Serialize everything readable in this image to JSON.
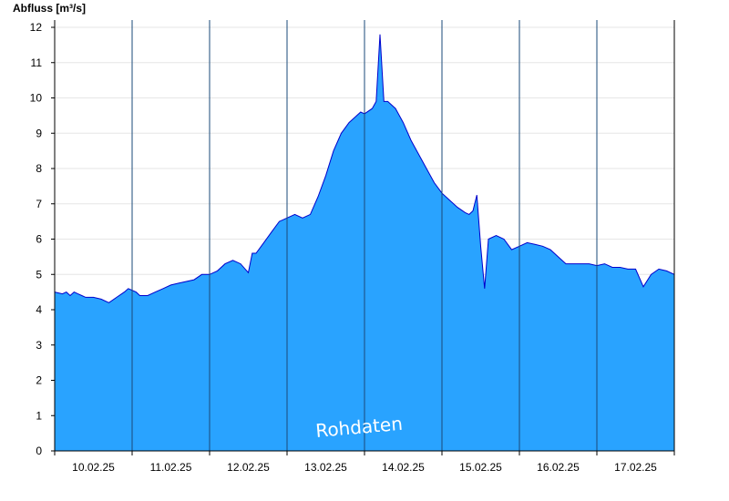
{
  "chart_data": {
    "type": "area",
    "ylabel": "Abfluss [m³/s]",
    "watermark": "Rohdaten",
    "ylim": [
      0,
      12
    ],
    "yticks": [
      0,
      1,
      2,
      3,
      4,
      5,
      6,
      7,
      8,
      9,
      10,
      11,
      12
    ],
    "xlim": [
      0,
      8
    ],
    "day_labels": [
      "10.02.25",
      "11.02.25",
      "12.02.25",
      "13.02.25",
      "14.02.25",
      "15.02.25",
      "16.02.25",
      "17.02.25"
    ],
    "grid": true,
    "fill_color": "#29A3FF",
    "line_color": "#0000CC",
    "series": [
      {
        "x": [
          0,
          0.1,
          0.15,
          0.2,
          0.25,
          0.3,
          0.35,
          0.4,
          0.5,
          0.6,
          0.7,
          0.8,
          0.9,
          0.95,
          1.0,
          1.05,
          1.1,
          1.2,
          1.3,
          1.4,
          1.5,
          1.6,
          1.7,
          1.8,
          1.9,
          2.0,
          2.1,
          2.2,
          2.3,
          2.4,
          2.5,
          2.55,
          2.6,
          2.7,
          2.8,
          2.9,
          3.0,
          3.1,
          3.2,
          3.3,
          3.4,
          3.5,
          3.6,
          3.7,
          3.8,
          3.9,
          3.95,
          4.0,
          4.1,
          4.15,
          4.2,
          4.25,
          4.3,
          4.4,
          4.5,
          4.6,
          4.7,
          4.8,
          4.9,
          5.0,
          5.1,
          5.2,
          5.3,
          5.35,
          5.4,
          5.45,
          5.5,
          5.55,
          5.6,
          5.7,
          5.8,
          5.9,
          6.0,
          6.1,
          6.2,
          6.3,
          6.4,
          6.5,
          6.6,
          6.7,
          6.8,
          6.9,
          7.0,
          7.1,
          7.2,
          7.3,
          7.4,
          7.5,
          7.6,
          7.7,
          7.8,
          7.9,
          8.0
        ],
        "y": [
          4.5,
          4.45,
          4.5,
          4.4,
          4.5,
          4.45,
          4.4,
          4.35,
          4.35,
          4.3,
          4.2,
          4.35,
          4.5,
          4.6,
          4.55,
          4.5,
          4.4,
          4.4,
          4.5,
          4.6,
          4.7,
          4.75,
          4.8,
          4.85,
          5.0,
          5.0,
          5.1,
          5.3,
          5.4,
          5.3,
          5.05,
          5.6,
          5.6,
          5.9,
          6.2,
          6.5,
          6.6,
          6.7,
          6.6,
          6.7,
          7.2,
          7.8,
          8.5,
          9.0,
          9.3,
          9.5,
          9.6,
          9.55,
          9.7,
          9.9,
          11.8,
          9.9,
          9.9,
          9.7,
          9.3,
          8.8,
          8.4,
          8.0,
          7.6,
          7.3,
          7.1,
          6.9,
          6.75,
          6.7,
          6.8,
          7.25,
          5.8,
          4.6,
          6.0,
          6.1,
          6.0,
          5.7,
          5.8,
          5.9,
          5.85,
          5.8,
          5.7,
          5.5,
          5.3,
          5.3,
          5.3,
          5.3,
          5.25,
          5.3,
          5.2,
          5.2,
          5.15,
          5.15,
          4.65,
          5.0,
          5.15,
          5.1,
          5.0
        ]
      }
    ]
  }
}
